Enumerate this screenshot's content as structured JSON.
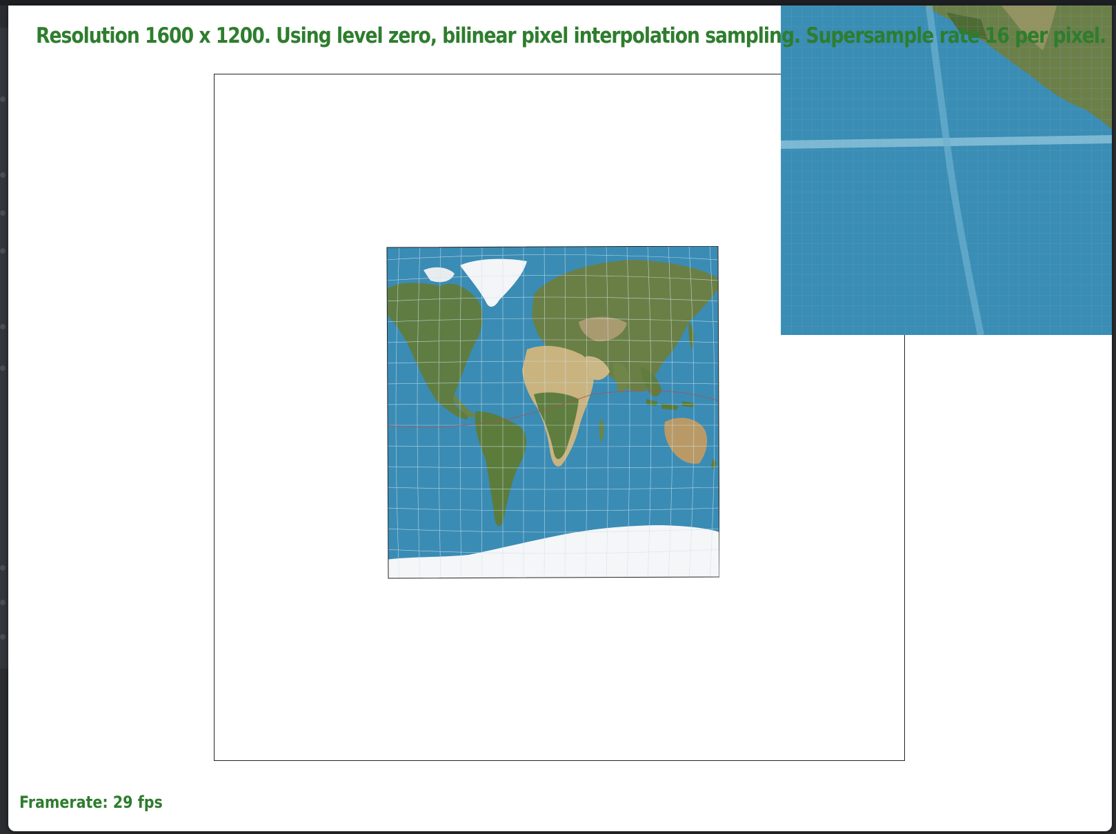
{
  "status": {
    "text": "Resolution 1600 x 1200. Using level zero, bilinear pixel interpolation sampling. Supersample rate 16 per pixel."
  },
  "footer": {
    "framerate": "Framerate: 29 fps"
  },
  "colors": {
    "text_green": "#2e7d2e",
    "ocean": "#3a8cb5",
    "land_green": "#5a7a3a",
    "land_desert": "#c9b080",
    "ice": "#f4f6f8",
    "grid": "#d8e8f0",
    "tropic_line": "#b05050"
  },
  "viewport": {
    "content": "world-map-projection",
    "inset": "zoomed-pixel-grid"
  }
}
